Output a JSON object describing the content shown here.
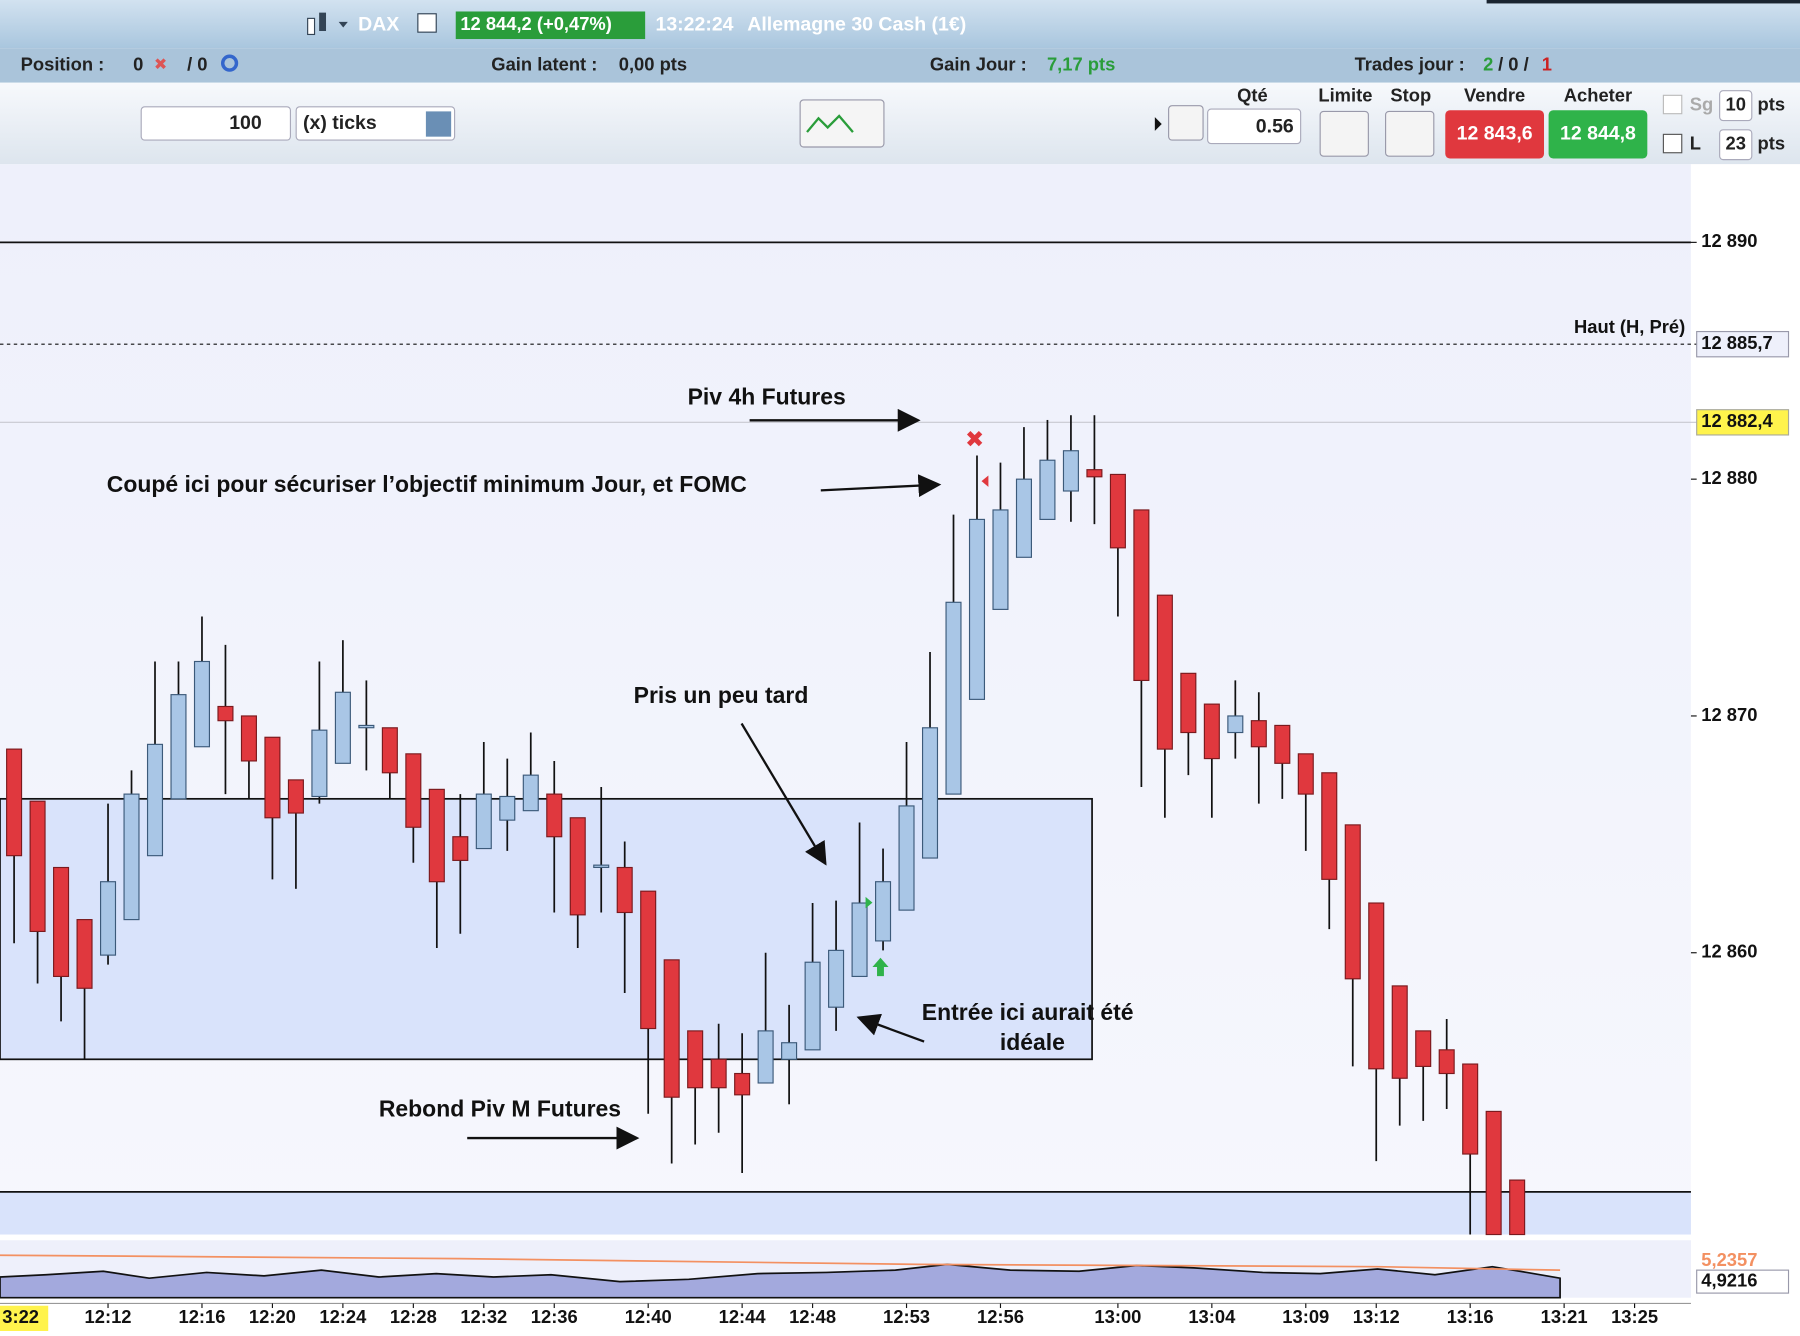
{
  "header": {
    "instrument": "DAX",
    "price_change": "12 844,2 (+0,47%)",
    "time": "13:22:24",
    "name": "Allemagne 30 Cash (1€)"
  },
  "status": {
    "position_label": "Position :",
    "position": "0",
    "position_orders": "/ 0",
    "latent_label": "Gain latent :",
    "latent": "0,00 pts",
    "day_label": "Gain Jour :",
    "day": "7,17 pts",
    "trades_label": "Trades jour :",
    "trades_won": "2",
    "trades_sep": "/ 0 /",
    "trades_lost": "1"
  },
  "toolbar": {
    "size": "100",
    "unit": "(x) ticks",
    "qty_label": "Qté",
    "qty": "0.56",
    "limit_label": "Limite",
    "stop_label": "Stop",
    "sell_label": "Vendre",
    "buy_label": "Acheter",
    "sell_price": "12 843,6",
    "buy_price": "12 844,8",
    "sg_label": "Sg",
    "sg_value": "10",
    "sg_unit": "pts",
    "l_label": "L",
    "l_value": "23",
    "l_unit": "pts"
  },
  "chart_data": {
    "type": "candlestick",
    "up_color": "#a9c6e6",
    "down_color": "#e0383e",
    "open": [
      12868.6,
      12866.4,
      12863.6,
      12861.4,
      12859.9,
      12861.4,
      12864.1,
      12866.5,
      12868.7,
      12870.4,
      12870.0,
      12869.1,
      12867.3,
      12866.6,
      12868.0,
      12869.6,
      12869.5,
      12868.4,
      12866.9,
      12864.9,
      12864.4,
      12865.6,
      12866.0,
      12866.7,
      12865.7,
      12863.7,
      12863.6,
      12862.6,
      12859.7,
      12856.7,
      12855.5,
      12854.9,
      12854.5,
      12855.5,
      12855.9,
      12857.7,
      12859.0,
      12860.5,
      12861.8,
      12864.0,
      12866.7,
      12870.7,
      12874.5,
      12876.7,
      12878.3,
      12879.5,
      12880.4,
      12880.2,
      12878.7,
      12875.1,
      12871.8,
      12870.5,
      12869.3,
      12869.8,
      12869.6,
      12868.4,
      12867.6,
      12865.4,
      12862.1,
      12858.6,
      12856.7,
      12855.9,
      12855.3,
      12853.3,
      12850.4
    ],
    "high": [
      12868.6,
      12866.4,
      12863.6,
      12861.4,
      12866.3,
      12867.7,
      12872.3,
      12872.3,
      12874.2,
      12873.0,
      12870.0,
      12869.1,
      12867.3,
      12872.3,
      12873.2,
      12871.5,
      12869.5,
      12868.4,
      12866.9,
      12866.7,
      12868.9,
      12868.2,
      12869.3,
      12868.1,
      12865.7,
      12867.0,
      12864.7,
      12862.6,
      12859.7,
      12856.7,
      12857.0,
      12856.6,
      12860.0,
      12857.8,
      12862.1,
      12862.2,
      12865.5,
      12864.4,
      12868.9,
      12872.7,
      12878.5,
      12881.0,
      12880.7,
      12882.2,
      12882.5,
      12882.7,
      12882.7,
      12880.2,
      12878.7,
      12875.1,
      12871.8,
      12870.5,
      12871.5,
      12871.0,
      12869.6,
      12868.4,
      12867.6,
      12865.4,
      12862.1,
      12858.6,
      12856.7,
      12857.2,
      12855.3,
      12853.3,
      12850.4
    ],
    "low": [
      12860.4,
      12858.7,
      12857.1,
      12855.5,
      12859.5,
      12861.4,
      12864.1,
      12866.5,
      12868.7,
      12866.7,
      12866.5,
      12863.1,
      12862.7,
      12866.3,
      12868.0,
      12867.7,
      12866.5,
      12863.8,
      12860.2,
      12860.8,
      12864.4,
      12864.3,
      12866.0,
      12861.7,
      12860.2,
      12861.7,
      12858.3,
      12853.2,
      12851.1,
      12851.9,
      12852.4,
      12850.7,
      12854.5,
      12853.6,
      12855.9,
      12856.7,
      12859.0,
      12860.1,
      12861.8,
      12864.0,
      12866.7,
      12870.7,
      12874.5,
      12876.7,
      12878.3,
      12878.2,
      12878.1,
      12874.2,
      12867.0,
      12865.7,
      12867.5,
      12865.7,
      12868.2,
      12866.3,
      12866.5,
      12864.3,
      12861.0,
      12855.2,
      12851.2,
      12852.7,
      12852.9,
      12853.4,
      12848.1,
      12848.1,
      12848.1
    ],
    "close": [
      12864.1,
      12860.9,
      12859.0,
      12858.5,
      12863.0,
      12866.7,
      12868.8,
      12870.9,
      12872.3,
      12869.8,
      12868.1,
      12865.7,
      12865.9,
      12869.4,
      12871.0,
      12869.6,
      12867.6,
      12865.3,
      12863.0,
      12863.9,
      12866.7,
      12866.6,
      12867.5,
      12864.9,
      12861.6,
      12863.7,
      12861.7,
      12856.8,
      12853.9,
      12854.3,
      12854.3,
      12854.0,
      12856.7,
      12856.2,
      12859.6,
      12860.1,
      12862.1,
      12863.0,
      12866.2,
      12869.5,
      12874.8,
      12878.3,
      12878.7,
      12880.0,
      12880.8,
      12881.2,
      12880.1,
      12877.1,
      12871.5,
      12868.6,
      12869.3,
      12868.2,
      12870.0,
      12868.7,
      12868.0,
      12866.7,
      12863.1,
      12858.9,
      12855.1,
      12854.7,
      12855.2,
      12854.9,
      12851.5,
      12848.1,
      12848.1
    ],
    "xlim": [
      -0.6,
      71.4
    ],
    "ylim": [
      12848.1,
      12893.3
    ],
    "yticks": [
      {
        "value": 12890,
        "label": "12 890"
      },
      {
        "value": 12880,
        "label": "12 880"
      },
      {
        "value": 12870,
        "label": "12 870"
      },
      {
        "value": 12860,
        "label": "12 860"
      }
    ],
    "xticks": [
      {
        "value": 4,
        "label": "12:12"
      },
      {
        "value": 8,
        "label": "12:16"
      },
      {
        "value": 11,
        "label": "12:20"
      },
      {
        "value": 14,
        "label": "12:24"
      },
      {
        "value": 17,
        "label": "12:28"
      },
      {
        "value": 20,
        "label": "12:32"
      },
      {
        "value": 23,
        "label": "12:36"
      },
      {
        "value": 27,
        "label": "12:40"
      },
      {
        "value": 31,
        "label": "12:44"
      },
      {
        "value": 34,
        "label": "12:48"
      },
      {
        "value": 38,
        "label": "12:53"
      },
      {
        "value": 42,
        "label": "12:56"
      },
      {
        "value": 47,
        "label": "13:00"
      },
      {
        "value": 51,
        "label": "13:04"
      },
      {
        "value": 55,
        "label": "13:09"
      },
      {
        "value": 58,
        "label": "13:12"
      },
      {
        "value": 62,
        "label": "13:16"
      },
      {
        "value": 66,
        "label": "13:21"
      },
      {
        "value": 69,
        "label": "13:25"
      }
    ],
    "hlines": [
      12890,
      12849.9
    ],
    "zone": {
      "x": [
        -0.6,
        45.9
      ],
      "y": [
        12855.5,
        12866.5
      ]
    },
    "prev_high": {
      "value": 12885.7,
      "label": "12 885,7",
      "name": "Haut (H, Pré)"
    },
    "last": {
      "value": 12882.4,
      "label": "12 882,4"
    },
    "cursor_time": "3:22",
    "indicator_labels": [
      "5,2357",
      "4,9216"
    ],
    "annotations": [
      "Piv 4h Futures",
      "Coupé ici pour sécuriser l’objectif minimum Jour, et FOMC",
      "Pris un peu tard",
      "Entrée ici aurait été",
      "idéale",
      "Rebond Piv M Futures"
    ]
  }
}
